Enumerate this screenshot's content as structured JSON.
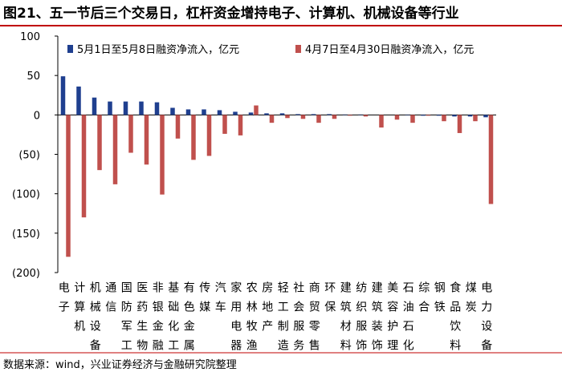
{
  "chart_data": {
    "type": "bar",
    "title": "图21、五一节后三个交易日，杠杆资金增持电子、计算机、机械设备等行业",
    "source": "数据来源：wind，兴业证券经济与金融研究院整理",
    "categories": [
      "电子",
      "计算机",
      "机械设备",
      "通信",
      "国防军工",
      "医药生物",
      "非银金融",
      "基础化工",
      "有色金属",
      "传媒",
      "汽车",
      "家用电器",
      "农林牧渔",
      "房地产",
      "轻工制造",
      "社会服务",
      "商贸零售",
      "环保",
      "建筑材料",
      "纺织服饰",
      "建筑装饰",
      "美容护理",
      "石油石化",
      "综合",
      "钢铁",
      "食品饮料",
      "煤炭",
      "电力设备"
    ],
    "series": [
      {
        "name": "5月1日至5月8日融资净流入，亿元",
        "color": "#1f3f8f",
        "values": [
          49,
          36,
          22,
          17,
          17,
          17,
          16,
          9,
          7,
          7,
          6,
          4,
          3,
          2,
          2,
          1,
          1,
          1,
          0.5,
          0.5,
          0,
          0,
          -0.5,
          -1,
          -1,
          -2,
          -2,
          -3
        ]
      },
      {
        "name": "4月7日至4月30日融资净流入，亿元",
        "color": "#c0504d",
        "values": [
          -180,
          -130,
          -70,
          -88,
          -48,
          -63,
          -101,
          -30,
          -57,
          -52,
          -24,
          -26,
          12,
          -10,
          -4,
          -5,
          -10,
          -5,
          -1,
          -2,
          -16,
          -6,
          -10,
          -1,
          -8,
          -23,
          -8,
          -113
        ]
      }
    ],
    "ylim": [
      -200,
      100
    ],
    "yticks": [
      100,
      50,
      0,
      {
        "value": -50,
        "label": "(50)"
      },
      {
        "value": -100,
        "label": "(100)"
      },
      {
        "value": -150,
        "label": "(150)"
      },
      {
        "value": -200,
        "label": "(200)"
      }
    ]
  }
}
